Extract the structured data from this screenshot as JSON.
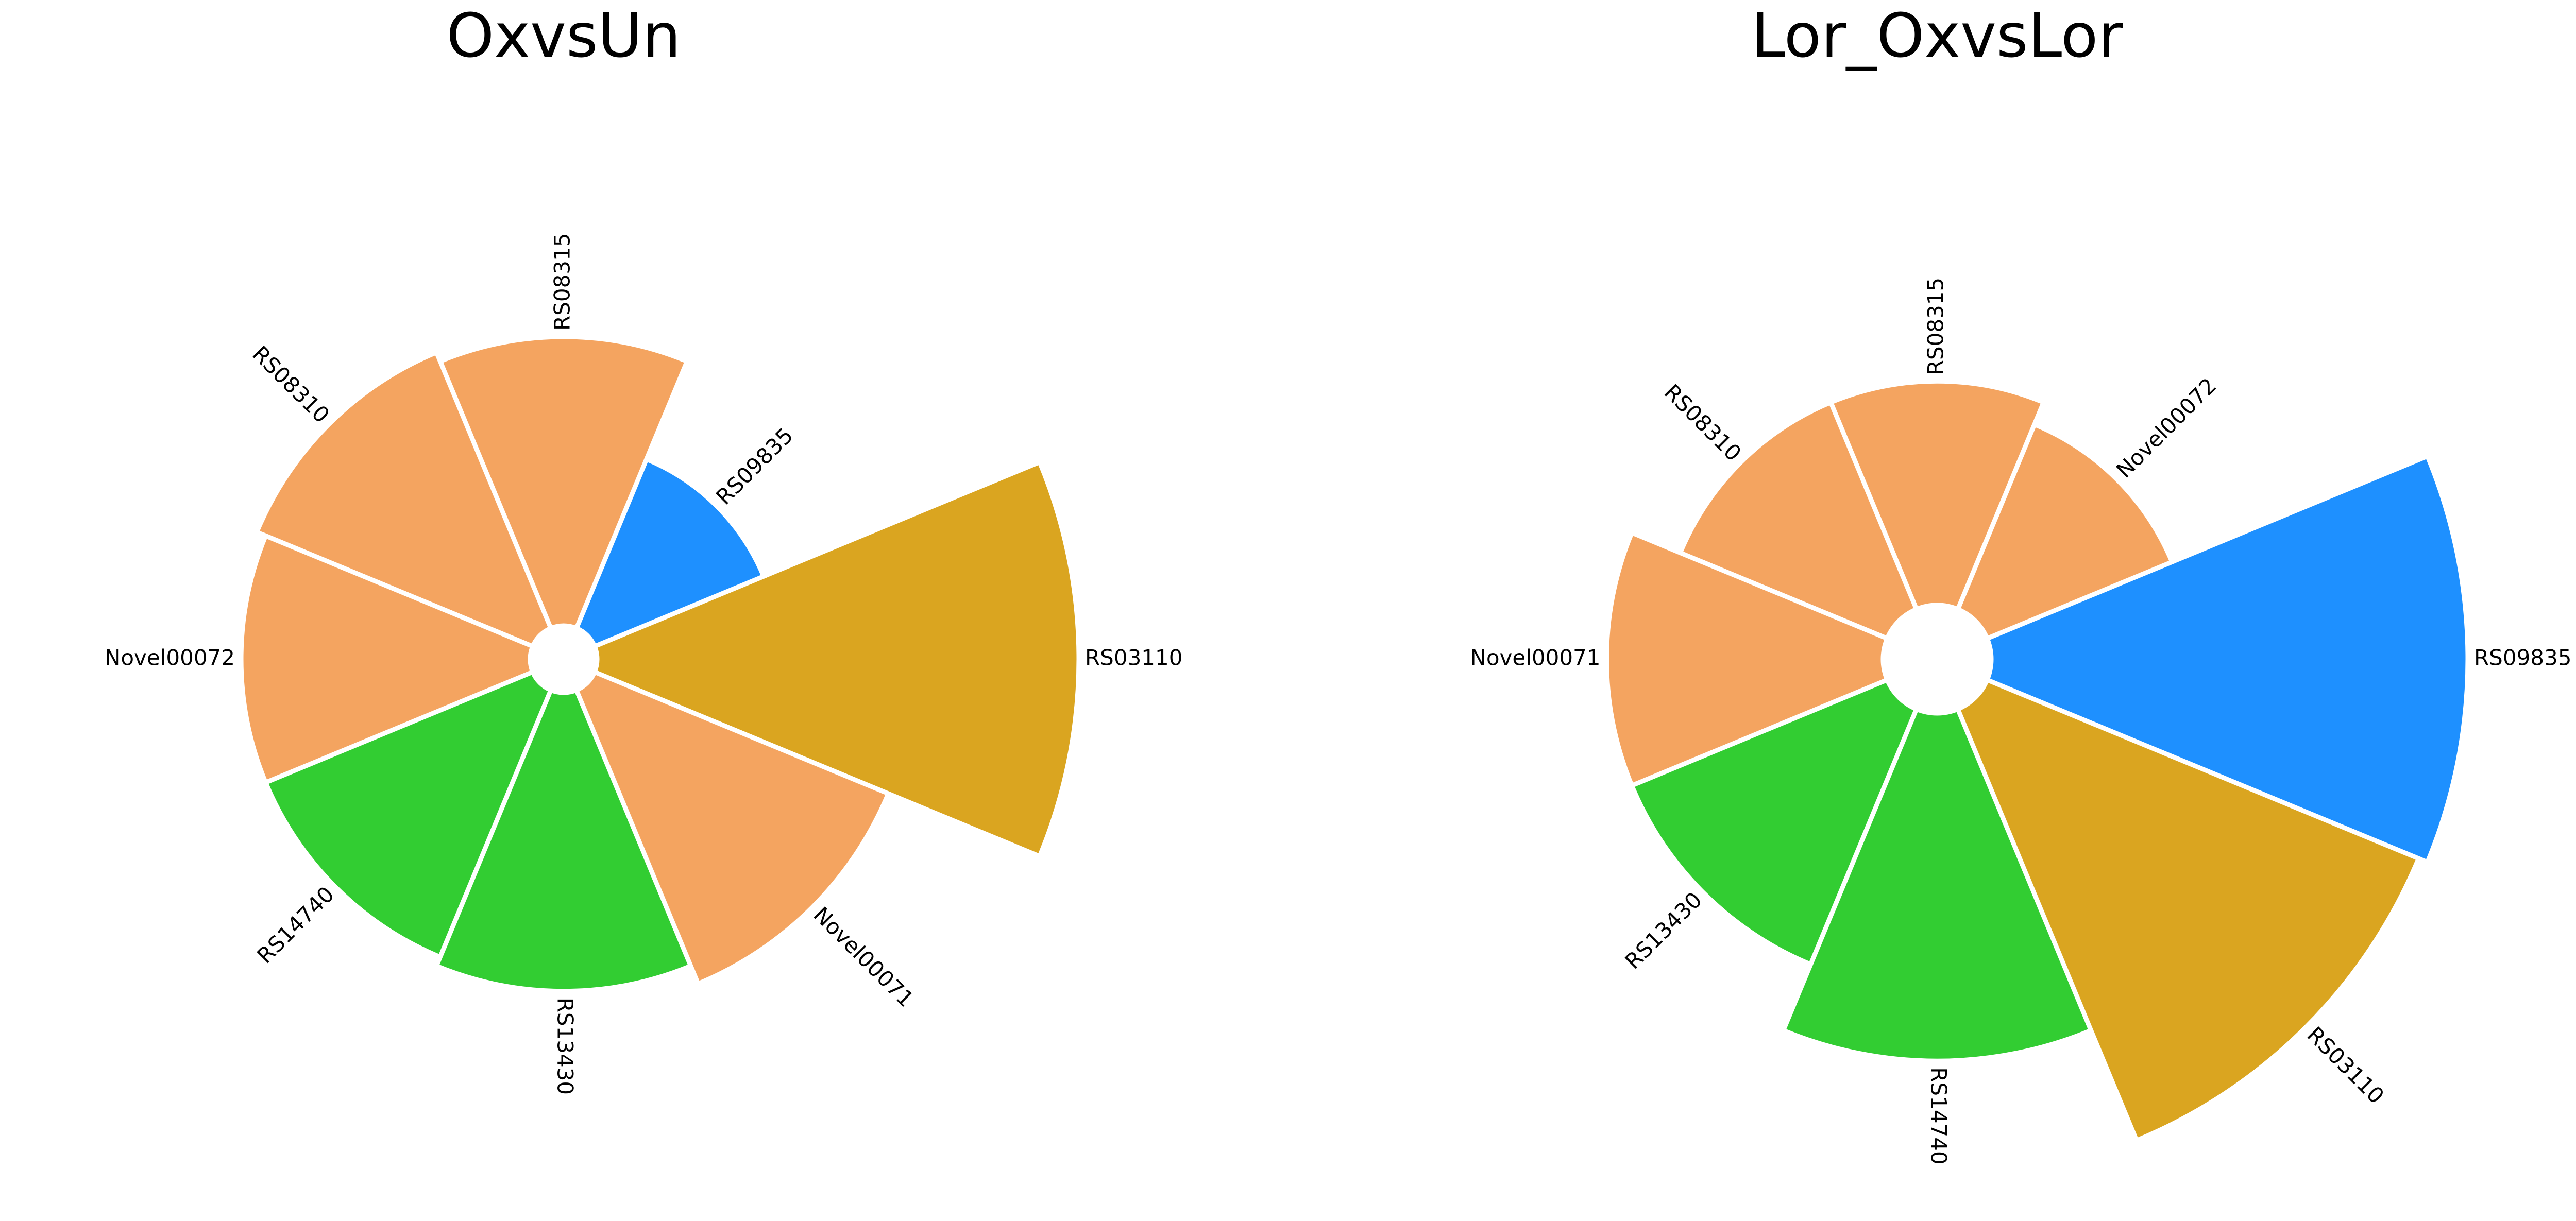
{
  "colors": {
    "blue": "#1E90FF",
    "orange": "#F4A460",
    "gold": "#DAA520",
    "green": "#32CD32"
  },
  "chart_data": [
    {
      "type": "radial-bar",
      "title": "OxvsUn",
      "ylim": [
        0,
        1
      ],
      "categories": [
        "RS03110",
        "RS09835",
        "RS08315",
        "RS08310",
        "Novel00072",
        "RS14740",
        "RS13430",
        "Novel00071"
      ],
      "values": [
        1.0,
        0.38,
        0.6,
        0.62,
        0.6,
        0.6,
        0.62,
        0.66
      ],
      "colors": [
        "#DAA520",
        "#1E90FF",
        "#F4A460",
        "#F4A460",
        "#F4A460",
        "#32CD32",
        "#32CD32",
        "#F4A460"
      ]
    },
    {
      "type": "radial-bar",
      "title": "Lor_OxvsLor",
      "ylim": [
        0,
        1
      ],
      "categories": [
        "RS09835",
        "Novel00072",
        "RS08315",
        "RS08310",
        "Novel00071",
        "RS13430",
        "RS14740",
        "RS03110"
      ],
      "values": [
        1.0,
        0.42,
        0.47,
        0.47,
        0.58,
        0.58,
        0.73,
        0.98
      ],
      "colors": [
        "#1E90FF",
        "#F4A460",
        "#F4A460",
        "#F4A460",
        "#F4A460",
        "#32CD32",
        "#32CD32",
        "#DAA520"
      ]
    }
  ]
}
